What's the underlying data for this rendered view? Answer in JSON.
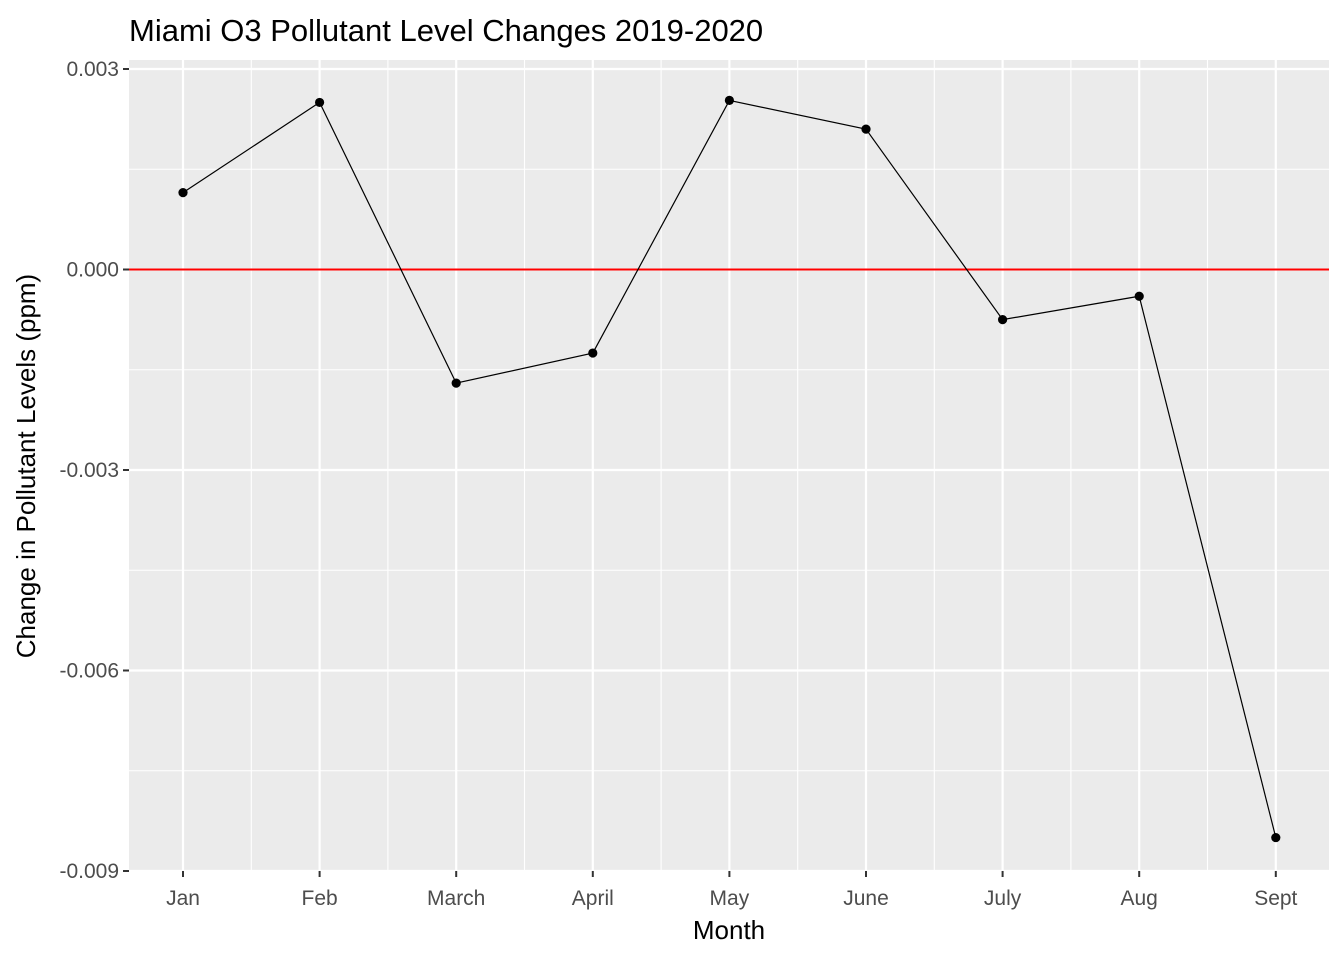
{
  "chart_data": {
    "type": "line",
    "title": "Miami O3 Pollutant Level Changes 2019-2020",
    "xlabel": "Month",
    "ylabel": "Change in Pollutant Levels (ppm)",
    "categories": [
      "Jan",
      "Feb",
      "March",
      "April",
      "May",
      "June",
      "July",
      "Aug",
      "Sept"
    ],
    "values": [
      0.00115,
      0.0025,
      -0.0017,
      -0.00125,
      0.00253,
      0.0021,
      -0.00075,
      -0.0004,
      -0.0085
    ],
    "ylim": [
      -0.009,
      0.003
    ],
    "yticks": [
      0.003,
      0.0,
      -0.003,
      -0.006,
      -0.009
    ],
    "ytick_labels": [
      "0.003",
      "0.000",
      "-0.003",
      "-0.006",
      "-0.009"
    ],
    "reference_line": {
      "y": 0,
      "color": "#ff0000"
    },
    "colors": {
      "panel": "#ebebeb",
      "grid": "#ffffff",
      "line": "#000000",
      "point": "#000000",
      "tick": "#333333"
    },
    "grid": true,
    "legend": "none"
  }
}
